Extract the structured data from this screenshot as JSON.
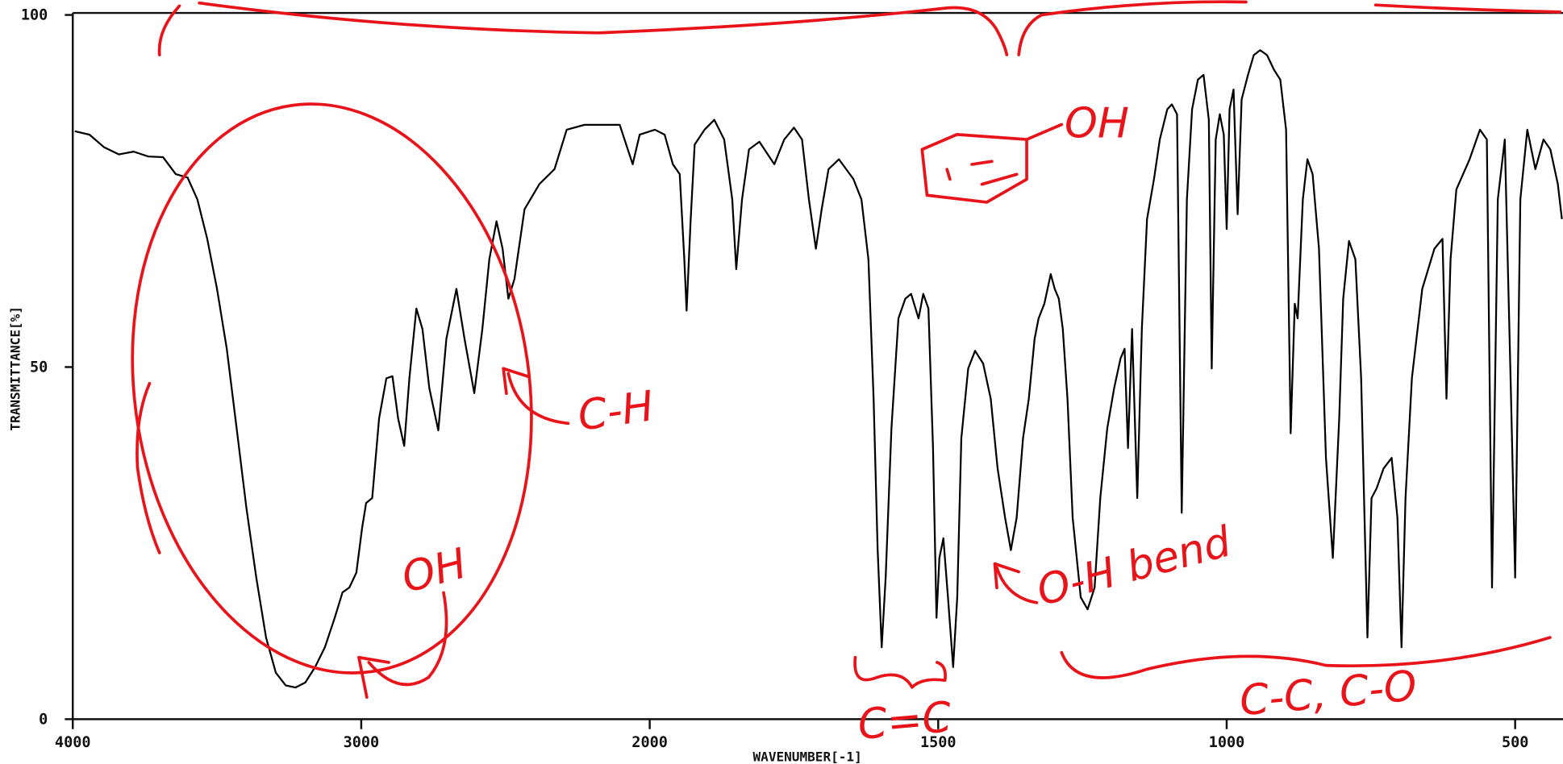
{
  "chart_data": {
    "type": "line",
    "xlabel": "WAVENUMBER[-1]",
    "ylabel": "TRANSMITTANCE[%]",
    "x": [
      3993,
      3942,
      3891,
      3840,
      3789,
      3738,
      3687,
      3643,
      3602,
      3568,
      3534,
      3500,
      3466,
      3432,
      3398,
      3364,
      3330,
      3296,
      3262,
      3228,
      3194,
      3160,
      3126,
      3092,
      3065,
      3041,
      3017,
      2997,
      2983,
      2962,
      2938,
      2913,
      2892,
      2872,
      2851,
      2833,
      2809,
      2788,
      2764,
      2733,
      2705,
      2670,
      2642,
      2608,
      2580,
      2556,
      2531,
      2510,
      2490,
      2469,
      2434,
      2382,
      2330,
      2288,
      2226,
      2156,
      2104,
      2059,
      2035,
      1991,
      1974,
      1960,
      1948,
      1940,
      1936,
      1929,
      1922,
      1905,
      1888,
      1871,
      1857,
      1850,
      1840,
      1828,
      1810,
      1784,
      1767,
      1750,
      1736,
      1724,
      1712,
      1702,
      1690,
      1672,
      1647,
      1633,
      1621,
      1612,
      1605,
      1598,
      1591,
      1581,
      1569,
      1557,
      1547,
      1534,
      1526,
      1517,
      1509,
      1503,
      1498,
      1491,
      1483,
      1474,
      1467,
      1460,
      1448,
      1436,
      1422,
      1409,
      1397,
      1384,
      1374,
      1364,
      1353,
      1343,
      1333,
      1326,
      1316,
      1305,
      1298,
      1291,
      1284,
      1276,
      1267,
      1253,
      1241,
      1229,
      1219,
      1207,
      1195,
      1184,
      1177,
      1171,
      1164,
      1155,
      1147,
      1138,
      1126,
      1116,
      1103,
      1095,
      1086,
      1078,
      1069,
      1060,
      1050,
      1040,
      1031,
      1026,
      1019,
      1012,
      1005,
      1000,
      995,
      988,
      981,
      974,
      963,
      953,
      942,
      930,
      918,
      907,
      897,
      889,
      882,
      877,
      868,
      860,
      851,
      840,
      828,
      816,
      805,
      798,
      788,
      777,
      767,
      756,
      749,
      740,
      728,
      714,
      704,
      697,
      690,
      679,
      661,
      640,
      626,
      619,
      612,
      602,
      579,
      561,
      549,
      540,
      530,
      518,
      507,
      500,
      491,
      479,
      465,
      451,
      439,
      426,
      419
    ],
    "values": [
      83.5,
      83.0,
      81.2,
      80.2,
      80.6,
      79.9,
      79.8,
      77.4,
      76.9,
      73.8,
      68.2,
      61.1,
      52.6,
      41.3,
      30.0,
      20.1,
      11.6,
      6.6,
      4.8,
      4.5,
      5.2,
      7.4,
      10.2,
      14.4,
      18.0,
      18.7,
      20.8,
      27.2,
      30.7,
      31.4,
      42.7,
      48.4,
      48.7,
      42.7,
      38.8,
      48.4,
      58.3,
      55.4,
      47.0,
      41.0,
      54.0,
      61.1,
      54.0,
      46.3,
      55.4,
      65.3,
      70.7,
      66.8,
      59.7,
      62.5,
      72.4,
      76.0,
      78.1,
      83.7,
      84.4,
      84.4,
      84.4,
      78.8,
      83.0,
      83.7,
      83.0,
      78.8,
      77.4,
      65.3,
      58.0,
      71.0,
      81.6,
      83.7,
      85.1,
      82.3,
      73.8,
      63.9,
      73.8,
      80.9,
      82.0,
      78.8,
      82.3,
      84.0,
      82.3,
      73.8,
      66.8,
      72.4,
      78.1,
      79.5,
      76.7,
      73.8,
      65.3,
      45.5,
      24.3,
      10.2,
      20.1,
      41.3,
      56.9,
      59.7,
      60.4,
      56.9,
      60.4,
      58.3,
      38.5,
      14.4,
      22.9,
      25.7,
      17.3,
      7.4,
      17.3,
      39.9,
      49.8,
      52.3,
      50.5,
      45.5,
      35.6,
      28.6,
      24.0,
      28.6,
      39.9,
      45.5,
      54.0,
      56.9,
      59.0,
      63.2,
      61.1,
      59.7,
      55.4,
      45.5,
      28.6,
      17.3,
      15.6,
      18.7,
      31.4,
      41.3,
      47.0,
      51.2,
      52.6,
      38.5,
      55.4,
      31.4,
      55.4,
      71.0,
      76.7,
      82.3,
      86.6,
      87.3,
      85.9,
      29.3,
      73.8,
      86.6,
      90.8,
      91.5,
      85.1,
      49.8,
      82.3,
      85.9,
      83.0,
      69.6,
      86.6,
      89.4,
      71.7,
      88.0,
      91.5,
      94.3,
      95.0,
      94.3,
      92.2,
      90.8,
      83.7,
      40.6,
      59.0,
      56.9,
      73.8,
      79.5,
      77.4,
      66.8,
      37.1,
      22.9,
      42.7,
      59.7,
      67.9,
      65.3,
      48.4,
      11.6,
      31.4,
      32.8,
      35.6,
      37.1,
      28.6,
      10.2,
      31.4,
      48.4,
      61.1,
      66.8,
      68.2,
      45.5,
      65.3,
      75.2,
      79.5,
      83.7,
      82.3,
      18.7,
      73.8,
      82.3,
      45.5,
      20.1,
      73.8,
      83.7,
      78.1,
      82.3,
      80.9,
      76.0,
      71.0
    ],
    "color": "#000000",
    "xlim": [
      4000,
      415
    ],
    "xticks": [
      4000,
      3000,
      2000,
      1500,
      1000,
      500
    ],
    "ylim": [
      0,
      100
    ],
    "yticks": [
      0,
      50,
      100
    ],
    "annotations": [
      "OH",
      "C-H",
      "OH",
      "O-H bend",
      "C=C",
      "C-C, C-O"
    ],
    "annotation_color": "#e8141a"
  }
}
